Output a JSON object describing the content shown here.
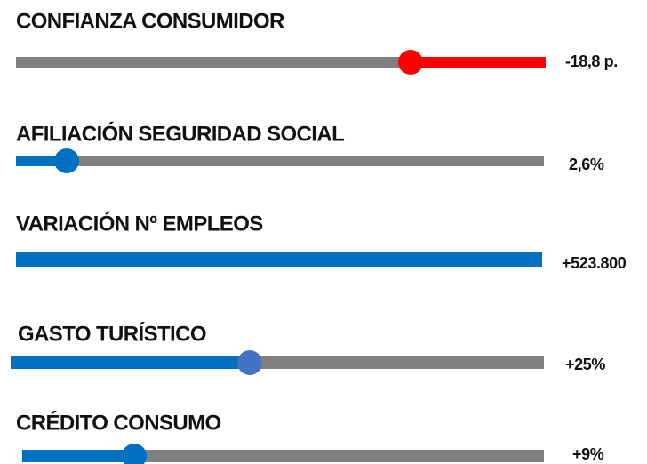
{
  "items": [
    {
      "label": "CONFIANZA CONSUMIDOR",
      "value": "-18,8 p."
    },
    {
      "label": "AFILIACIÓN SEGURIDAD SOCIAL",
      "value": "2,6%"
    },
    {
      "label": "VARIACIÓN Nº EMPLEOS",
      "value": "+523.800"
    },
    {
      "label": "GASTO TURÍSTICO",
      "value": "+25%"
    },
    {
      "label": "CRÉDITO CONSUMO",
      "value": "+9%"
    }
  ]
}
